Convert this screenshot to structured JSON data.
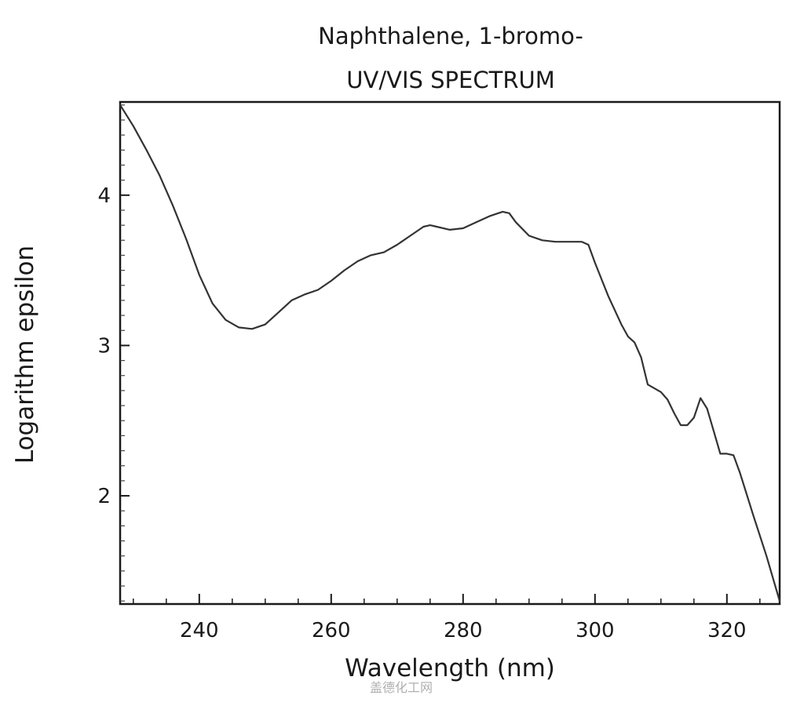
{
  "chart_data": {
    "type": "line",
    "title": "Naphthalene, 1-bromo-",
    "subtitle": "UV/VIS SPECTRUM",
    "xlabel": "Wavelength (nm)",
    "ylabel": "Logarithm epsilon",
    "xlim": [
      228,
      328
    ],
    "ylim": [
      1.28,
      4.62
    ],
    "x_ticks": [
      240,
      260,
      280,
      300,
      320
    ],
    "y_ticks": [
      2,
      3,
      4
    ],
    "grid": false,
    "series": [
      {
        "color": "#333333",
        "x": [
          228,
          230,
          232,
          234,
          236,
          238,
          240,
          242,
          244,
          246,
          248,
          250,
          252,
          254,
          256,
          258,
          260,
          262,
          264,
          266,
          268,
          270,
          272,
          274,
          275,
          276,
          278,
          280,
          282,
          284,
          286,
          287,
          288,
          290,
          292,
          294,
          296,
          298,
          299,
          300,
          302,
          304,
          305,
          306,
          307,
          308,
          310,
          311,
          312,
          313,
          314,
          315,
          316,
          317,
          318,
          319,
          320,
          321,
          322,
          324,
          326,
          328
        ],
        "y": [
          4.6,
          4.46,
          4.3,
          4.13,
          3.93,
          3.71,
          3.47,
          3.28,
          3.17,
          3.12,
          3.11,
          3.14,
          3.22,
          3.3,
          3.34,
          3.37,
          3.43,
          3.5,
          3.56,
          3.6,
          3.62,
          3.67,
          3.73,
          3.79,
          3.8,
          3.79,
          3.77,
          3.78,
          3.82,
          3.86,
          3.89,
          3.88,
          3.82,
          3.73,
          3.7,
          3.69,
          3.69,
          3.69,
          3.67,
          3.55,
          3.33,
          3.14,
          3.06,
          3.02,
          2.92,
          2.74,
          2.69,
          2.64,
          2.55,
          2.47,
          2.47,
          2.52,
          2.65,
          2.58,
          2.43,
          2.28,
          2.28,
          2.27,
          2.15,
          1.87,
          1.6,
          1.3
        ]
      }
    ]
  },
  "watermark": "盖德化工网"
}
